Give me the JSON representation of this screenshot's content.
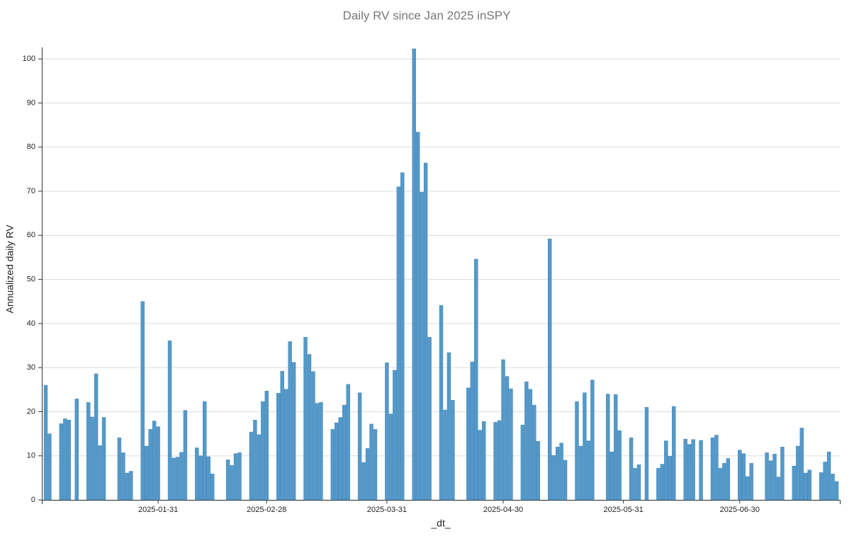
{
  "chart_data": {
    "type": "bar",
    "title": "Daily RV since Jan 2025 inSPY",
    "x_label": "_dt_",
    "y_label": "Annualized daily RV",
    "x": [
      "2025-01-02",
      "2025-01-03",
      "2025-01-06",
      "2025-01-07",
      "2025-01-08",
      "2025-01-10",
      "2025-01-13",
      "2025-01-14",
      "2025-01-15",
      "2025-01-16",
      "2025-01-17",
      "2025-01-21",
      "2025-01-22",
      "2025-01-23",
      "2025-01-24",
      "2025-01-27",
      "2025-01-28",
      "2025-01-29",
      "2025-01-30",
      "2025-01-31",
      "2025-02-03",
      "2025-02-04",
      "2025-02-05",
      "2025-02-06",
      "2025-02-07",
      "2025-02-10",
      "2025-02-11",
      "2025-02-12",
      "2025-02-13",
      "2025-02-14",
      "2025-02-18",
      "2025-02-19",
      "2025-02-20",
      "2025-02-21",
      "2025-02-24",
      "2025-02-25",
      "2025-02-26",
      "2025-02-27",
      "2025-02-28",
      "2025-03-03",
      "2025-03-04",
      "2025-03-05",
      "2025-03-06",
      "2025-03-07",
      "2025-03-10",
      "2025-03-11",
      "2025-03-12",
      "2025-03-13",
      "2025-03-14",
      "2025-03-17",
      "2025-03-18",
      "2025-03-19",
      "2025-03-20",
      "2025-03-21",
      "2025-03-24",
      "2025-03-25",
      "2025-03-26",
      "2025-03-27",
      "2025-03-28",
      "2025-03-31",
      "2025-04-01",
      "2025-04-02",
      "2025-04-03",
      "2025-04-04",
      "2025-04-07",
      "2025-04-08",
      "2025-04-09",
      "2025-04-10",
      "2025-04-11",
      "2025-04-14",
      "2025-04-15",
      "2025-04-16",
      "2025-04-17",
      "2025-04-21",
      "2025-04-22",
      "2025-04-23",
      "2025-04-24",
      "2025-04-25",
      "2025-04-28",
      "2025-04-29",
      "2025-04-30",
      "2025-05-01",
      "2025-05-02",
      "2025-05-05",
      "2025-05-06",
      "2025-05-07",
      "2025-05-08",
      "2025-05-09",
      "2025-05-12",
      "2025-05-13",
      "2025-05-14",
      "2025-05-15",
      "2025-05-16",
      "2025-05-19",
      "2025-05-20",
      "2025-05-21",
      "2025-05-22",
      "2025-05-23",
      "2025-05-27",
      "2025-05-28",
      "2025-05-29",
      "2025-05-30",
      "2025-06-02",
      "2025-06-03",
      "2025-06-04",
      "2025-06-06",
      "2025-06-09",
      "2025-06-10",
      "2025-06-11",
      "2025-06-12",
      "2025-06-13",
      "2025-06-16",
      "2025-06-17",
      "2025-06-18",
      "2025-06-20",
      "2025-06-23",
      "2025-06-24",
      "2025-06-25",
      "2025-06-26",
      "2025-06-27",
      "2025-06-30",
      "2025-07-01",
      "2025-07-02",
      "2025-07-03",
      "2025-07-07",
      "2025-07-08",
      "2025-07-09",
      "2025-07-10",
      "2025-07-11",
      "2025-07-14",
      "2025-07-15",
      "2025-07-16",
      "2025-07-17",
      "2025-07-18",
      "2025-07-21",
      "2025-07-22",
      "2025-07-23",
      "2025-07-24",
      "2025-07-25"
    ],
    "values": [
      26,
      15,
      17.3,
      18.4,
      18.1,
      22.9,
      22.1,
      18.8,
      28.6,
      12.3,
      18.7,
      14.1,
      10.7,
      6.1,
      6.5,
      45,
      12.2,
      16,
      17.9,
      16.6,
      36.1,
      9.5,
      9.7,
      10.8,
      20.3,
      11.8,
      10,
      22.3,
      9.8,
      5.9,
      9.1,
      7.8,
      10.5,
      10.7,
      15.4,
      18.1,
      14.8,
      22.3,
      24.7,
      24.2,
      29.2,
      25.1,
      35.9,
      31.2,
      36.9,
      33,
      29.1,
      21.9,
      22.1,
      16,
      17.5,
      18.7,
      21.5,
      26.2,
      24.3,
      8.5,
      11.7,
      17.2,
      16,
      31.1,
      19.5,
      29.4,
      71,
      74.2,
      102.3,
      83.4,
      69.8,
      76.4,
      36.9,
      44.1,
      20.4,
      33.4,
      22.6,
      25.4,
      31.3,
      54.6,
      15.8,
      17.8,
      17.6,
      18,
      31.8,
      28,
      25.2,
      17,
      26.8,
      25.1,
      21.5,
      13.3,
      59.2,
      10.1,
      12,
      12.9,
      9,
      22.3,
      12.2,
      24.3,
      13.4,
      27.2,
      24,
      10.9,
      23.9,
      15.7,
      14.1,
      7.2,
      8,
      21,
      7.2,
      8.1,
      13.4,
      9.9,
      21.2,
      13.8,
      12.6,
      13.7,
      13.5,
      14.1,
      14.7,
      7.2,
      8.3,
      9.4,
      11.3,
      10.5,
      5.3,
      8.3,
      10.7,
      8.9,
      10.4,
      5.2,
      12,
      7.7,
      12.2,
      16.3,
      6.1,
      6.8,
      6.2,
      8.6,
      10.9,
      5.9,
      4.2
    ],
    "color": "#5599c9",
    "xlim": [
      "2025-01-01",
      "2025-07-26"
    ],
    "xticks": [
      "2025-01-31",
      "2025-02-28",
      "2025-03-31",
      "2025-04-30",
      "2025-05-31",
      "2025-06-30"
    ],
    "ylim": [
      0,
      102.6
    ],
    "yticks": [
      0,
      10,
      20,
      30,
      40,
      50,
      60,
      70,
      80,
      90,
      100
    ],
    "grid": true
  }
}
